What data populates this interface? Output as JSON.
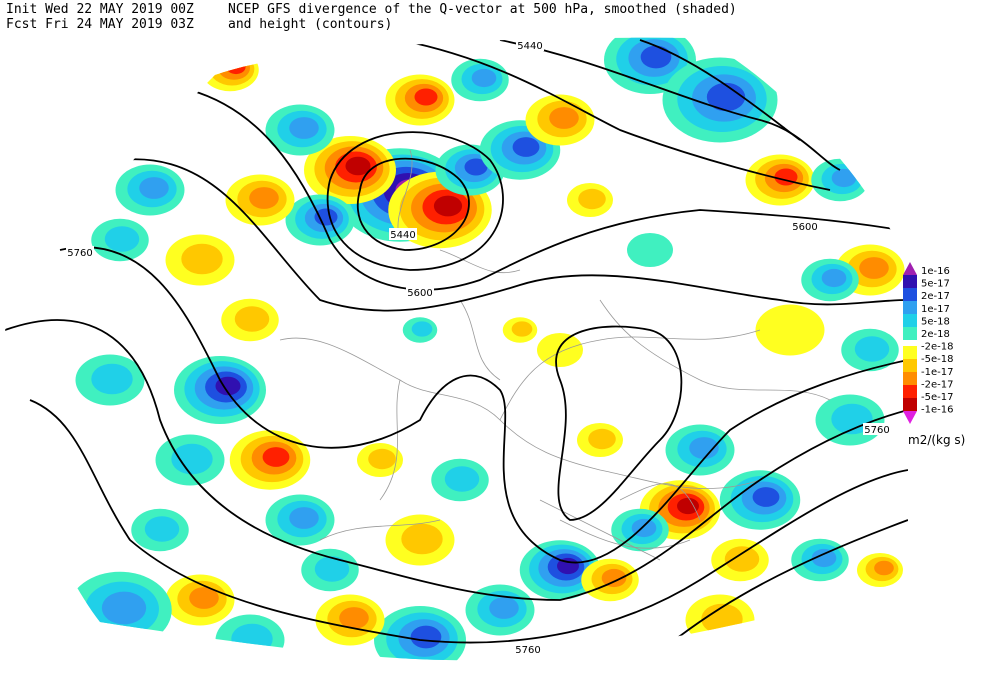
{
  "header": {
    "init": "Init  Wed 22 MAY 2019 00Z",
    "fcst": "Fcst Fri 24 MAY 2019 03Z",
    "title_line1": "NCEP GFS divergence of the Q-vector at 500 hPa, smoothed (shaded)",
    "title_line2": "and height (contours)"
  },
  "contour_labels": [
    "5440",
    "5440",
    "5600",
    "5600",
    "5760",
    "5760",
    "5760"
  ],
  "colorbar": {
    "labels": [
      "1e-16",
      "5e-17",
      "2e-17",
      "1e-17",
      "5e-18",
      "2e-18",
      "-2e-18",
      "-5e-18",
      "-1e-17",
      "-2e-17",
      "-5e-17",
      "-1e-16"
    ],
    "colors": [
      "#a020b0",
      "#3010b0",
      "#1e50e0",
      "#30a0f0",
      "#20d0e8",
      "#40f0c0",
      "#ffff20",
      "#ffc800",
      "#ff8c00",
      "#ff2000",
      "#c00000",
      "#e020e0"
    ],
    "unit": "m2/(kg s)"
  }
}
